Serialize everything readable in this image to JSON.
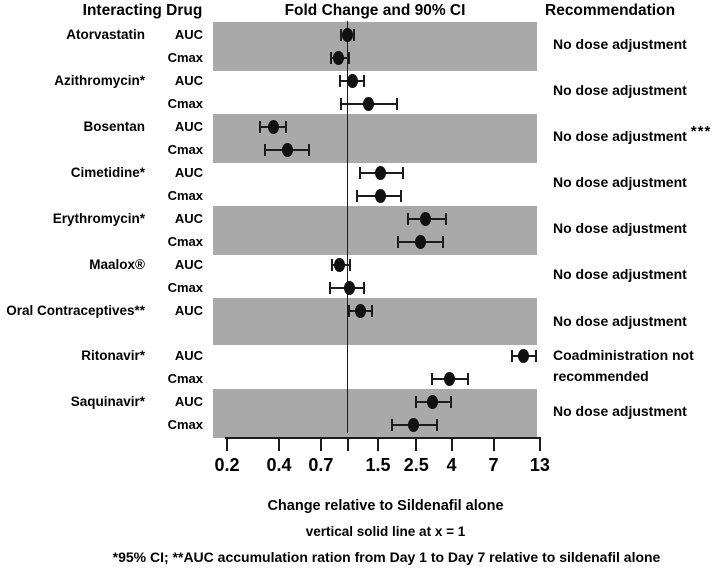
{
  "header": {
    "interacting_drug": "Interacting Drug",
    "fold_change": "Fold Change and 90% CI",
    "recommendation": "Recommendation"
  },
  "chart_data": {
    "type": "scatter",
    "subtype": "forest-plot",
    "x_scale": "log",
    "x_axis_ticks": [
      0.2,
      0.4,
      0.7,
      1,
      1.5,
      2.5,
      4,
      7,
      13
    ],
    "x_axis_tick_labels": [
      "0.2",
      "0.4",
      "0.7",
      "",
      "1.5",
      "2.5",
      "4",
      "7",
      "13"
    ],
    "x_range": [
      0.2,
      13
    ],
    "reference_line_x": 1,
    "xlabel": "Change relative to Sildenafil alone",
    "title": "Fold Change and 90% CI",
    "groups": [
      {
        "drug": "Atorvastatin",
        "shaded": true,
        "recommendation": "No dose adjustment",
        "rec_suffix": "",
        "rows": [
          {
            "metric": "AUC",
            "value": 1.0,
            "ci_low": 0.92,
            "ci_high": 1.09
          },
          {
            "metric": "Cmax",
            "value": 0.89,
            "ci_low": 0.8,
            "ci_high": 1.02
          }
        ]
      },
      {
        "drug": "Azithromycin*",
        "shaded": false,
        "recommendation": "No dose adjustment",
        "rec_suffix": "",
        "rows": [
          {
            "metric": "AUC",
            "value": 1.06,
            "ci_low": 0.9,
            "ci_high": 1.24
          },
          {
            "metric": "Cmax",
            "value": 1.32,
            "ci_low": 0.92,
            "ci_high": 1.92
          }
        ]
      },
      {
        "drug": "Bosentan",
        "shaded": true,
        "recommendation": "No dose adjustment",
        "rec_suffix": "***",
        "rows": [
          {
            "metric": "AUC",
            "value": 0.37,
            "ci_low": 0.31,
            "ci_high": 0.44
          },
          {
            "metric": "Cmax",
            "value": 0.45,
            "ci_low": 0.33,
            "ci_high": 0.6
          }
        ]
      },
      {
        "drug": "Cimetidine*",
        "shaded": false,
        "recommendation": "No dose adjustment",
        "rec_suffix": "",
        "rows": [
          {
            "metric": "AUC",
            "value": 1.56,
            "ci_low": 1.18,
            "ci_high": 2.08
          },
          {
            "metric": "Cmax",
            "value": 1.54,
            "ci_low": 1.14,
            "ci_high": 2.03
          }
        ]
      },
      {
        "drug": "Erythromycin*",
        "shaded": true,
        "recommendation": "No dose adjustment",
        "rec_suffix": "",
        "rows": [
          {
            "metric": "AUC",
            "value": 2.84,
            "ci_low": 2.25,
            "ci_high": 3.7
          },
          {
            "metric": "Cmax",
            "value": 2.63,
            "ci_low": 1.97,
            "ci_high": 3.58
          }
        ]
      },
      {
        "drug": "Maalox®",
        "shaded": false,
        "recommendation": "No dose adjustment",
        "rec_suffix": "",
        "rows": [
          {
            "metric": "AUC",
            "value": 0.9,
            "ci_low": 0.81,
            "ci_high": 1.03
          },
          {
            "metric": "Cmax",
            "value": 1.02,
            "ci_low": 0.79,
            "ci_high": 1.24
          }
        ]
      },
      {
        "drug": "Oral Contraceptives**",
        "shaded": true,
        "recommendation": "No dose adjustment",
        "rec_suffix": "",
        "rows": [
          {
            "metric": "AUC",
            "value": 1.18,
            "ci_low": 1.02,
            "ci_high": 1.38
          }
        ]
      },
      {
        "drug": "Ritonavir*",
        "shaded": false,
        "recommendation": "Coadministration not recommended",
        "rec_suffix": "",
        "rows": [
          {
            "metric": "AUC",
            "value": 10.5,
            "ci_low": 9.0,
            "ci_high": 12.3
          },
          {
            "metric": "Cmax",
            "value": 3.9,
            "ci_low": 3.1,
            "ci_high": 5.0
          }
        ]
      },
      {
        "drug": "Saquinavir*",
        "shaded": true,
        "recommendation": "No dose adjustment",
        "rec_suffix": "",
        "rows": [
          {
            "metric": "AUC",
            "value": 3.1,
            "ci_low": 2.5,
            "ci_high": 3.95
          },
          {
            "metric": "Cmax",
            "value": 2.4,
            "ci_low": 1.8,
            "ci_high": 3.3
          }
        ]
      }
    ]
  },
  "footer": {
    "xlabel": "Change relative to Sildenafil alone",
    "reference_note": "vertical solid line at x = 1",
    "footnote": "*95% CI; **AUC accumulation ration from Day 1 to Day 7 relative to sildenafil alone"
  },
  "colors": {
    "band": "#a9a9a9",
    "marker": "#111111",
    "line": "#1c1c1c",
    "text": "#000000"
  }
}
